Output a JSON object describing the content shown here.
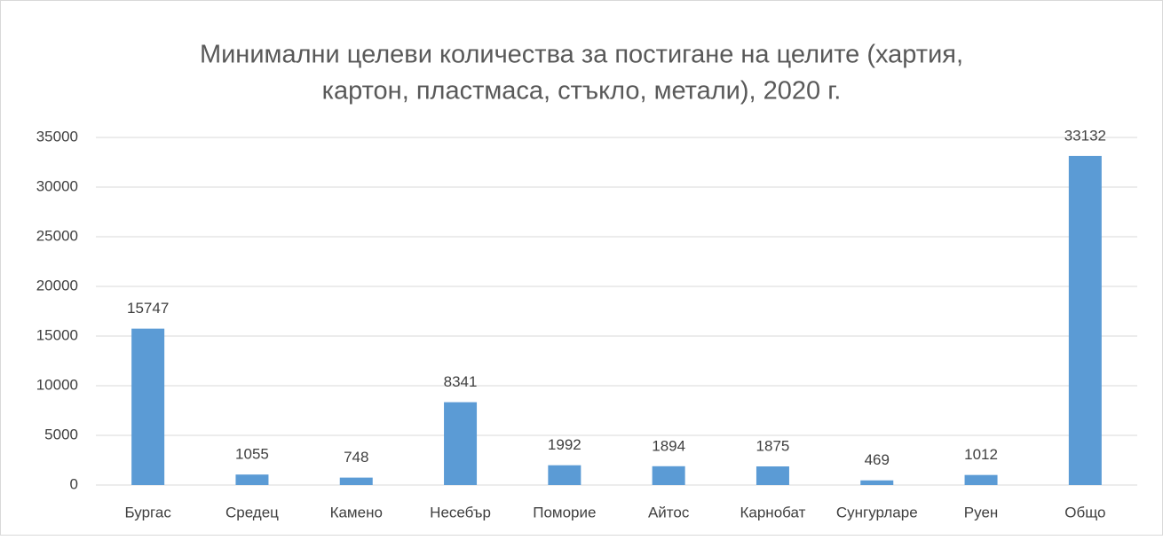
{
  "chart_data": {
    "type": "bar",
    "title": [
      "Минимални целеви количества за постигане на целите (хартия,",
      "картон, пластмаса, стъкло, метали), 2020 г."
    ],
    "categories": [
      "Бургас",
      "Средец",
      "Камено",
      "Несебър",
      "Поморие",
      "Айтос",
      "Карнобат",
      "Сунгурларе",
      "Руен",
      "Общо"
    ],
    "values": [
      15747,
      1055,
      748,
      8341,
      1992,
      1894,
      1875,
      469,
      1012,
      33132
    ],
    "color": "#5b9bd5",
    "ylim": [
      0,
      35000
    ],
    "yticks": [
      0,
      5000,
      10000,
      15000,
      20000,
      25000,
      30000,
      35000
    ],
    "grid": true
  }
}
